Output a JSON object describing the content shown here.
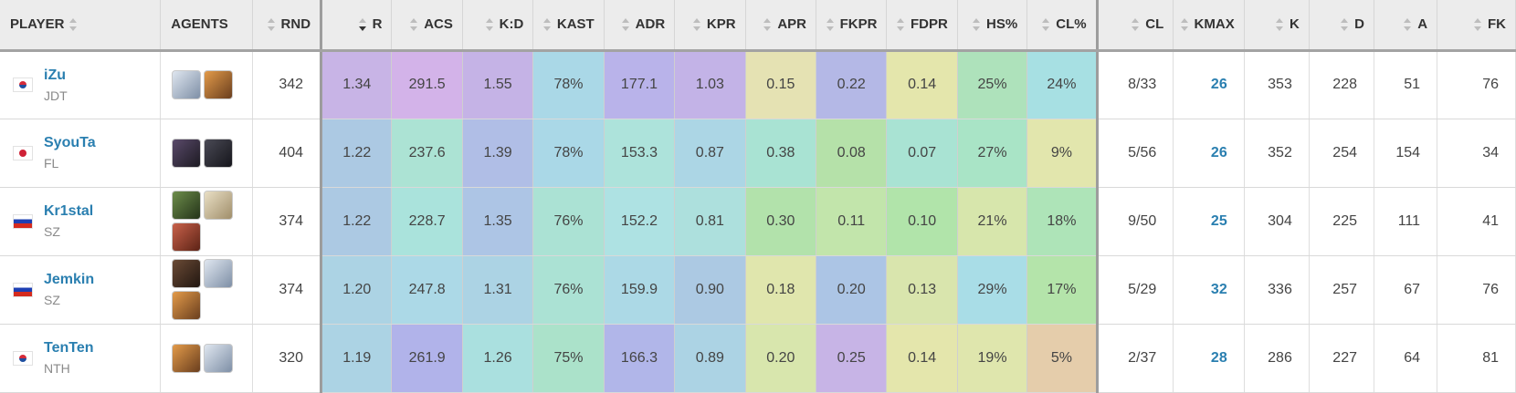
{
  "headers": {
    "player": "PLAYER",
    "agents": "AGENTS",
    "rnd": "RND",
    "r": "R",
    "acs": "ACS",
    "kd": "K:D",
    "kast": "KAST",
    "adr": "ADR",
    "kpr": "KPR",
    "apr": "APR",
    "fkpr": "FKPR",
    "fdpr": "FDPR",
    "hs": "HS%",
    "cl_pct": "CL%",
    "cl": "CL",
    "kmax": "KMAX",
    "k": "K",
    "d": "D",
    "a": "A",
    "fk": "FK"
  },
  "sort": {
    "column": "R",
    "direction": "descending"
  },
  "rows": [
    {
      "name": "iZu",
      "team": "JDT",
      "flag": "kr-flag-icon",
      "agents": [
        {
          "icon": "agent-silver-icon",
          "tone": "ag-silver"
        },
        {
          "icon": "agent-orange-icon",
          "tone": "ag-orange"
        }
      ],
      "rnd": "342",
      "r": "1.34",
      "acs": "291.5",
      "kd": "1.55",
      "kast": "78%",
      "adr": "177.1",
      "kpr": "1.03",
      "apr": "0.15",
      "fkpr": "0.22",
      "fdpr": "0.14",
      "hs": "25%",
      "cl_pct": "24%",
      "cl": "8/33",
      "kmax": "26",
      "k": "353",
      "d": "228",
      "a": "51",
      "fk": "76",
      "colors": {
        "r": "#c8b4e6",
        "acs": "#d3b3e9",
        "kd": "#c5b3e6",
        "kast": "#aad8e7",
        "adr": "#b9b3ea",
        "kpr": "#c3b3e7",
        "apr": "#e5e2b3",
        "fkpr": "#b4b8e6",
        "fdpr": "#e4e6ac",
        "hs": "#aee2bb",
        "cl_pct": "#a7e0e3"
      }
    },
    {
      "name": "SyouTa",
      "team": "FL",
      "flag": "jp-flag-icon",
      "agents": [
        {
          "icon": "agent-dark-icon",
          "tone": "ag-dark"
        },
        {
          "icon": "agent-mask-icon",
          "tone": "ag-mask"
        }
      ],
      "rnd": "404",
      "r": "1.22",
      "acs": "237.6",
      "kd": "1.39",
      "kast": "78%",
      "adr": "153.3",
      "kpr": "0.87",
      "apr": "0.38",
      "fkpr": "0.08",
      "fdpr": "0.07",
      "hs": "27%",
      "cl_pct": "9%",
      "cl": "5/56",
      "kmax": "26",
      "k": "352",
      "d": "254",
      "a": "154",
      "fk": "34",
      "colors": {
        "r": "#acc9e3",
        "acs": "#ace3d4",
        "kd": "#b0bee6",
        "kast": "#aad8e7",
        "adr": "#ade3db",
        "kpr": "#acd6e5",
        "apr": "#a9e3d3",
        "fkpr": "#b5e1a9",
        "fdpr": "#a9e3d3",
        "hs": "#a9e4c6",
        "cl_pct": "#e2e6ad"
      }
    },
    {
      "name": "Kr1stal",
      "team": "SZ",
      "flag": "ru-flag-icon",
      "agents": [
        {
          "icon": "agent-green-icon",
          "tone": "ag-green"
        },
        {
          "icon": "agent-blonde-icon",
          "tone": "ag-blonde"
        },
        {
          "icon": "agent-red-icon",
          "tone": "ag-red"
        }
      ],
      "rnd": "374",
      "r": "1.22",
      "acs": "228.7",
      "kd": "1.35",
      "kast": "76%",
      "adr": "152.2",
      "kpr": "0.81",
      "apr": "0.30",
      "fkpr": "0.11",
      "fdpr": "0.10",
      "hs": "21%",
      "cl_pct": "18%",
      "cl": "9/50",
      "kmax": "25",
      "k": "304",
      "d": "225",
      "a": "111",
      "fk": "41",
      "colors": {
        "r": "#acc9e3",
        "acs": "#aae3dc",
        "kd": "#adc5e5",
        "kast": "#abe2d4",
        "adr": "#aee2e3",
        "kpr": "#ade0dd",
        "apr": "#b2e2ab",
        "fkpr": "#c2e5ab",
        "fdpr": "#b1e4aa",
        "hs": "#d7e6ac",
        "cl_pct": "#aee4b8"
      }
    },
    {
      "name": "Jemkin",
      "team": "SZ",
      "flag": "ru-flag-icon",
      "agents": [
        {
          "icon": "agent-black-icon",
          "tone": "ag-black"
        },
        {
          "icon": "agent-silver-icon",
          "tone": "ag-silver"
        },
        {
          "icon": "agent-orange-icon",
          "tone": "ag-orange"
        }
      ],
      "rnd": "374",
      "r": "1.20",
      "acs": "247.8",
      "kd": "1.31",
      "kast": "76%",
      "adr": "159.9",
      "kpr": "0.90",
      "apr": "0.18",
      "fkpr": "0.20",
      "fdpr": "0.13",
      "hs": "29%",
      "cl_pct": "17%",
      "cl": "5/29",
      "kmax": "32",
      "k": "336",
      "d": "257",
      "a": "67",
      "fk": "76",
      "colors": {
        "r": "#acd3e4",
        "acs": "#acd9e7",
        "kd": "#acd3e4",
        "kast": "#abe2d4",
        "adr": "#acd9e6",
        "kpr": "#acc9e3",
        "apr": "#e0e6ad",
        "fkpr": "#acc5e5",
        "fdpr": "#d9e5ad",
        "hs": "#a9dde7",
        "cl_pct": "#b4e4aa"
      }
    },
    {
      "name": "TenTen",
      "team": "NTH",
      "flag": "kr-flag-icon",
      "agents": [
        {
          "icon": "agent-orange-icon",
          "tone": "ag-orange"
        },
        {
          "icon": "agent-silver-icon",
          "tone": "ag-silver"
        }
      ],
      "rnd": "320",
      "r": "1.19",
      "acs": "261.9",
      "kd": "1.26",
      "kast": "75%",
      "adr": "166.3",
      "kpr": "0.89",
      "apr": "0.20",
      "fkpr": "0.25",
      "fdpr": "0.14",
      "hs": "19%",
      "cl_pct": "5%",
      "cl": "2/37",
      "kmax": "28",
      "k": "286",
      "d": "227",
      "a": "64",
      "fk": "81",
      "colors": {
        "r": "#acd3e4",
        "acs": "#b1b3ea",
        "kd": "#aae0df",
        "kast": "#abe2ca",
        "adr": "#b1b6e9",
        "kpr": "#acd3e4",
        "apr": "#d8e6ad",
        "fkpr": "#c7b4e6",
        "fdpr": "#e4e6ac",
        "hs": "#dfe6ad",
        "cl_pct": "#e5cdab"
      }
    }
  ]
}
